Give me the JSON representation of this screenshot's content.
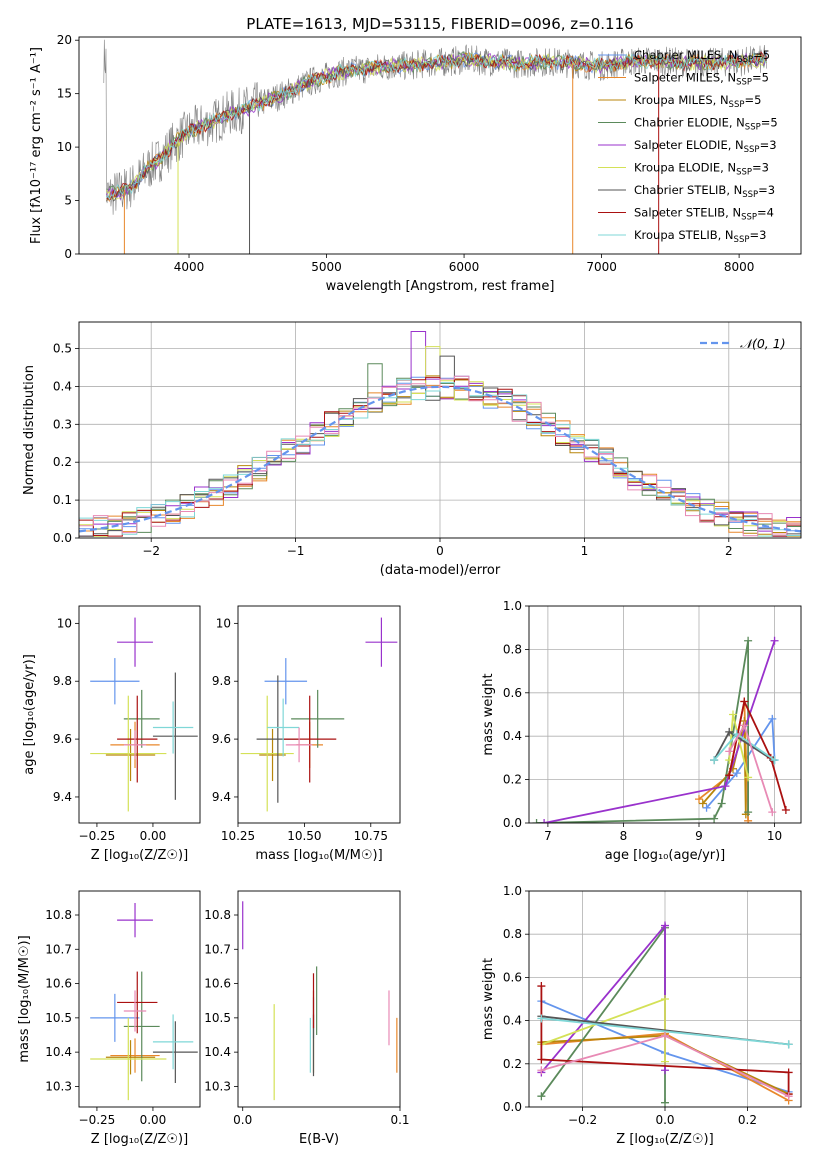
{
  "colors": {
    "Chabrier MILES": "#6495ED",
    "Salpeter MILES": "#E8872B",
    "Kroupa MILES": "#B8860B",
    "Chabrier ELODIE": "#5B8A5B",
    "Salpeter ELODIE": "#9932CC",
    "Kroupa ELODIE": "#D4E157",
    "Chabrier STELIB": "#555555",
    "Salpeter STELIB": "#AA1111",
    "Kroupa STELIB": "#7FD7D7",
    "pink": "#E88AB5",
    "grid": "#b0b0b0"
  },
  "chart_data": [
    {
      "id": "spectrum",
      "type": "line",
      "title": "PLATE=1613, MJD=53115, FIBERID=0096, z=0.116",
      "xlabel": "wavelength [Angstrom, rest frame]",
      "ylabel": "Flux [fλ10⁻¹⁷ erg cm⁻² s⁻¹ A⁻¹]",
      "xlim": [
        3200,
        8450
      ],
      "ylim": [
        0,
        20.3
      ],
      "xticks": [
        4000,
        5000,
        6000,
        7000,
        8000
      ],
      "yticks": [
        0,
        5,
        10,
        15,
        20
      ],
      "grid": false,
      "legend_position": "upper-right",
      "legend": [
        {
          "label": "Chabrier MILES, N",
          "sub": "SSP",
          "tail": "=5",
          "color": "#6495ED"
        },
        {
          "label": "Salpeter MILES, N",
          "sub": "SSP",
          "tail": "=5",
          "color": "#E8872B"
        },
        {
          "label": "Kroupa MILES, N",
          "sub": "SSP",
          "tail": "=5",
          "color": "#B8860B"
        },
        {
          "label": "Chabrier ELODIE, N",
          "sub": "SSP",
          "tail": "=5",
          "color": "#5B8A5B"
        },
        {
          "label": "Salpeter ELODIE, N",
          "sub": "SSP",
          "tail": "=3",
          "color": "#9932CC"
        },
        {
          "label": "Kroupa ELODIE, N",
          "sub": "SSP",
          "tail": "=3",
          "color": "#D4E157"
        },
        {
          "label": "Chabrier STELIB, N",
          "sub": "SSP",
          "tail": "=3",
          "color": "#555555"
        },
        {
          "label": "Salpeter STELIB, N",
          "sub": "SSP",
          "tail": "=4",
          "color": "#AA1111"
        },
        {
          "label": "Kroupa STELIB, N",
          "sub": "SSP",
          "tail": "=3",
          "color": "#7FD7D7"
        }
      ],
      "continuum": {
        "x": [
          3400,
          3500,
          3600,
          3700,
          3800,
          3900,
          4000,
          4100,
          4200,
          4300,
          4400,
          4500,
          4600,
          4700,
          4800,
          4900,
          5000,
          5100,
          5200,
          5300,
          5400,
          5500,
          5600,
          5700,
          5800,
          5900,
          6000,
          6200,
          6400,
          6600,
          6800,
          7000,
          7200,
          7400,
          7600,
          7800,
          8000,
          8200
        ],
        "y": [
          5.5,
          5.8,
          6.5,
          8.0,
          9.0,
          10.5,
          11.5,
          12.0,
          12.5,
          13.2,
          13.5,
          14.0,
          14.5,
          15.0,
          15.6,
          16.2,
          16.6,
          17.0,
          17.2,
          17.3,
          17.5,
          17.6,
          17.6,
          17.8,
          17.9,
          18.0,
          18.2,
          18.0,
          17.8,
          18.0,
          17.8,
          17.6,
          18.0,
          18.1,
          17.9,
          17.9,
          18.0,
          18.2
        ]
      },
      "model_dropouts": [
        {
          "x": 3530,
          "color": "#E8872B"
        },
        {
          "x": 3920,
          "color": "#D4E157"
        },
        {
          "x": 4440,
          "color": "#555555"
        },
        {
          "x": 6790,
          "color": "#E8872B"
        },
        {
          "x": 7415,
          "color": "#AA1111"
        }
      ]
    },
    {
      "id": "residuals",
      "type": "step",
      "xlabel": "(data-model)/error",
      "ylabel": "Normed distribution",
      "xlim": [
        -2.5,
        2.5
      ],
      "ylim": [
        0,
        0.57
      ],
      "xticks": [
        -2,
        -1,
        0,
        1,
        2
      ],
      "xtick_labels": [
        "−2",
        "−1",
        "0",
        "1",
        "2"
      ],
      "yticks": [
        0.0,
        0.1,
        0.2,
        0.3,
        0.4,
        0.5
      ],
      "ytick_labels": [
        "0.0",
        "0.1",
        "0.2",
        "0.3",
        "0.4",
        "0.5"
      ],
      "grid": true,
      "legend_position": "upper-right",
      "reference_curve": {
        "label": "𝒩(0, 1)",
        "mean": 0,
        "sigma": 1,
        "color": "#6495ED"
      },
      "bin_width": 0.1,
      "highlight_bins": [
        {
          "color": "#9932CC",
          "x": -0.2,
          "y": 0.545
        },
        {
          "color": "#D4E157",
          "x": -0.1,
          "y": 0.505
        },
        {
          "color": "#5B8A5B",
          "x": -0.5,
          "y": 0.46
        },
        {
          "color": "#555555",
          "x": 0.0,
          "y": 0.48
        },
        {
          "color": "#AA1111",
          "x": -0.4,
          "y": 0.38
        }
      ]
    },
    {
      "id": "age_vs_Z",
      "type": "errorbar",
      "xlabel": "Z [log₁₀(Z/Z☉)]",
      "ylabel": "age  [log₁₀(age/yr)]",
      "xlim": [
        -0.33,
        0.21
      ],
      "ylim": [
        9.31,
        10.06
      ],
      "xticks": [
        -0.25,
        0.0
      ],
      "xtick_labels": [
        "−0.25",
        "0.00"
      ],
      "yticks": [
        9.4,
        9.6,
        9.8,
        10.0
      ],
      "points": [
        {
          "x": -0.17,
          "y": 9.8,
          "xerr": 0.11,
          "yerr": 0.08,
          "color": "#6495ED"
        },
        {
          "x": -0.08,
          "y": 9.58,
          "xerr": 0.11,
          "yerr": 0.08,
          "color": "#E8872B"
        },
        {
          "x": -0.1,
          "y": 9.545,
          "xerr": 0.11,
          "yerr": 0.09,
          "color": "#B8860B"
        },
        {
          "x": -0.05,
          "y": 9.67,
          "xerr": 0.08,
          "yerr": 0.1,
          "color": "#5B8A5B"
        },
        {
          "x": -0.08,
          "y": 9.935,
          "xerr": 0.08,
          "yerr": 0.085,
          "color": "#9932CC"
        },
        {
          "x": -0.11,
          "y": 9.55,
          "xerr": 0.17,
          "yerr": 0.2,
          "color": "#D4E157"
        },
        {
          "x": 0.1,
          "y": 9.61,
          "xerr": 0.1,
          "yerr": 0.22,
          "color": "#555555"
        },
        {
          "x": -0.07,
          "y": 9.6,
          "xerr": 0.09,
          "yerr": 0.15,
          "color": "#AA1111"
        },
        {
          "x": 0.09,
          "y": 9.64,
          "xerr": 0.09,
          "yerr": 0.09,
          "color": "#7FD7D7"
        },
        {
          "x": -0.08,
          "y": 9.58,
          "xerr": 0.05,
          "yerr": 0.05,
          "color": "#E88AB5"
        }
      ]
    },
    {
      "id": "age_vs_mass",
      "type": "errorbar",
      "xlabel": "mass [log₁₀(M/M☉)]",
      "ylabel": "",
      "xlim": [
        10.25,
        10.86
      ],
      "ylim": [
        9.31,
        10.06
      ],
      "xticks": [
        10.25,
        10.5,
        10.75
      ],
      "xtick_labels": [
        "10.25",
        "10.50",
        "10.75"
      ],
      "yticks": [
        9.4,
        9.6,
        9.8,
        10.0
      ],
      "points": [
        {
          "x": 10.43,
          "y": 9.8,
          "xerr": 0.08,
          "yerr": 0.08,
          "color": "#6495ED"
        },
        {
          "x": 10.52,
          "y": 9.58,
          "xerr": 0.05,
          "yerr": 0.08,
          "color": "#E8872B"
        },
        {
          "x": 10.38,
          "y": 9.545,
          "xerr": 0.05,
          "yerr": 0.09,
          "color": "#B8860B"
        },
        {
          "x": 10.55,
          "y": 9.67,
          "xerr": 0.1,
          "yerr": 0.1,
          "color": "#5B8A5B"
        },
        {
          "x": 10.79,
          "y": 9.935,
          "xerr": 0.06,
          "yerr": 0.085,
          "color": "#9932CC"
        },
        {
          "x": 10.36,
          "y": 9.55,
          "xerr": 0.1,
          "yerr": 0.2,
          "color": "#D4E157"
        },
        {
          "x": 10.4,
          "y": 9.6,
          "xerr": 0.08,
          "yerr": 0.22,
          "color": "#555555"
        },
        {
          "x": 10.52,
          "y": 9.6,
          "xerr": 0.1,
          "yerr": 0.15,
          "color": "#AA1111"
        },
        {
          "x": 10.42,
          "y": 9.64,
          "xerr": 0.06,
          "yerr": 0.1,
          "color": "#7FD7D7"
        },
        {
          "x": 10.48,
          "y": 9.58,
          "xerr": 0.05,
          "yerr": 0.06,
          "color": "#E88AB5"
        }
      ]
    },
    {
      "id": "massweight_vs_age",
      "type": "line",
      "xlabel": "age  [log₁₀(age/yr)]",
      "ylabel": "mass weight",
      "xlim": [
        6.75,
        10.35
      ],
      "ylim": [
        0,
        1.0
      ],
      "xticks": [
        7,
        8,
        9,
        10
      ],
      "yticks": [
        0.0,
        0.2,
        0.4,
        0.6,
        0.8,
        1.0
      ],
      "ytick_labels": [
        "0.0",
        "0.2",
        "0.4",
        "0.6",
        "0.8",
        "1.0"
      ],
      "grid": true,
      "series": [
        {
          "color": "#6495ED",
          "x": [
            9.1,
            9.5,
            9.97,
            10.0
          ],
          "y": [
            0.07,
            0.23,
            0.48,
            0.29
          ]
        },
        {
          "color": "#E8872B",
          "x": [
            9.0,
            9.4,
            9.6,
            9.65
          ],
          "y": [
            0.11,
            0.22,
            0.56,
            0.01
          ]
        },
        {
          "color": "#B8860B",
          "x": [
            9.05,
            9.45,
            9.6,
            9.62
          ],
          "y": [
            0.09,
            0.25,
            0.47,
            0.04
          ]
        },
        {
          "color": "#5B8A5B",
          "x": [
            6.85,
            9.2,
            9.3,
            9.65,
            9.65
          ],
          "y": [
            0.0,
            0.02,
            0.09,
            0.84,
            0.05
          ]
        },
        {
          "color": "#9932CC",
          "x": [
            6.95,
            9.35,
            10.0
          ],
          "y": [
            0.0,
            0.17,
            0.84
          ]
        },
        {
          "color": "#D4E157",
          "x": [
            9.4,
            9.45,
            9.65
          ],
          "y": [
            0.29,
            0.5,
            0.21
          ]
        },
        {
          "color": "#555555",
          "x": [
            9.2,
            9.4,
            9.98
          ],
          "y": [
            0.29,
            0.42,
            0.29
          ]
        },
        {
          "color": "#AA1111",
          "x": [
            9.4,
            9.6,
            9.95,
            10.15
          ],
          "y": [
            0.22,
            0.56,
            0.3,
            0.06
          ]
        },
        {
          "color": "#7FD7D7",
          "x": [
            9.2,
            9.5,
            10.0
          ],
          "y": [
            0.29,
            0.41,
            0.29
          ]
        },
        {
          "color": "#E88AB5",
          "x": [
            9.4,
            9.6,
            9.97
          ],
          "y": [
            0.33,
            0.45,
            0.05
          ]
        }
      ]
    },
    {
      "id": "mass_vs_Z",
      "type": "errorbar",
      "xlabel": "Z [log₁₀(Z/Z☉)]",
      "ylabel": "mass [log₁₀(M/M☉)]",
      "xlim": [
        -0.33,
        0.21
      ],
      "ylim": [
        10.24,
        10.87
      ],
      "xticks": [
        -0.25,
        0.0
      ],
      "xtick_labels": [
        "−0.25",
        "0.00"
      ],
      "yticks": [
        10.3,
        10.4,
        10.5,
        10.6,
        10.7,
        10.8
      ],
      "ytick_labels": [
        "10.3",
        "10.4",
        "10.5",
        "10.6",
        "10.7",
        "10.8"
      ],
      "points": [
        {
          "x": -0.17,
          "y": 10.5,
          "xerr": 0.11,
          "yerr": 0.07,
          "color": "#6495ED"
        },
        {
          "x": -0.08,
          "y": 10.39,
          "xerr": 0.11,
          "yerr": 0.05,
          "color": "#E8872B"
        },
        {
          "x": -0.1,
          "y": 10.385,
          "xerr": 0.11,
          "yerr": 0.05,
          "color": "#B8860B"
        },
        {
          "x": -0.05,
          "y": 10.475,
          "xerr": 0.08,
          "yerr": 0.16,
          "color": "#5B8A5B"
        },
        {
          "x": -0.08,
          "y": 10.785,
          "xerr": 0.08,
          "yerr": 0.05,
          "color": "#9932CC"
        },
        {
          "x": -0.11,
          "y": 10.38,
          "xerr": 0.17,
          "yerr": 0.12,
          "color": "#D4E157"
        },
        {
          "x": 0.1,
          "y": 10.4,
          "xerr": 0.1,
          "yerr": 0.09,
          "color": "#555555"
        },
        {
          "x": -0.07,
          "y": 10.545,
          "xerr": 0.09,
          "yerr": 0.09,
          "color": "#AA1111"
        },
        {
          "x": 0.09,
          "y": 10.43,
          "xerr": 0.09,
          "yerr": 0.08,
          "color": "#7FD7D7"
        },
        {
          "x": -0.08,
          "y": 10.52,
          "xerr": 0.05,
          "yerr": 0.06,
          "color": "#E88AB5"
        }
      ]
    },
    {
      "id": "mass_vs_EBV",
      "type": "errorbar",
      "xlabel": "E(B-V)",
      "ylabel": "",
      "xlim": [
        -0.003,
        0.1
      ],
      "ylim": [
        10.24,
        10.87
      ],
      "xticks": [
        0.0,
        0.1
      ],
      "xtick_labels": [
        "0.0",
        "0.1"
      ],
      "yticks": [
        10.3,
        10.4,
        10.5,
        10.6,
        10.7,
        10.8
      ],
      "ytick_labels": [
        "10.3",
        "10.4",
        "10.5",
        "10.6",
        "10.7",
        "10.8"
      ],
      "points": [
        {
          "x": 0.045,
          "y": 10.5,
          "xerr": 0,
          "yerr": 0.06,
          "color": "#6495ED"
        },
        {
          "x": 0.098,
          "y": 10.42,
          "xerr": 0,
          "yerr": 0.08,
          "color": "#E8872B"
        },
        {
          "x": 0.045,
          "y": 10.46,
          "xerr": 0,
          "yerr": 0.12,
          "color": "#B8860B"
        },
        {
          "x": 0.047,
          "y": 10.55,
          "xerr": 0,
          "yerr": 0.1,
          "color": "#5B8A5B"
        },
        {
          "x": 0.0,
          "y": 10.77,
          "xerr": 0,
          "yerr": 0.07,
          "color": "#9932CC"
        },
        {
          "x": 0.02,
          "y": 10.4,
          "xerr": 0,
          "yerr": 0.14,
          "color": "#D4E157"
        },
        {
          "x": 0.045,
          "y": 10.42,
          "xerr": 0,
          "yerr": 0.09,
          "color": "#555555"
        },
        {
          "x": 0.045,
          "y": 10.55,
          "xerr": 0,
          "yerr": 0.08,
          "color": "#AA1111"
        },
        {
          "x": 0.043,
          "y": 10.42,
          "xerr": 0,
          "yerr": 0.08,
          "color": "#7FD7D7"
        },
        {
          "x": 0.093,
          "y": 10.5,
          "xerr": 0,
          "yerr": 0.08,
          "color": "#E88AB5"
        }
      ]
    },
    {
      "id": "massweight_vs_Z",
      "type": "line",
      "xlabel": "Z [log₁₀(Z/Z☉)]",
      "ylabel": "mass weight",
      "xlim": [
        -0.33,
        0.33
      ],
      "ylim": [
        0,
        1.0
      ],
      "xticks": [
        -0.2,
        0.0,
        0.2
      ],
      "xtick_labels": [
        "−0.2",
        "0.0",
        "0.2"
      ],
      "yticks": [
        0.0,
        0.2,
        0.4,
        0.6,
        0.8,
        1.0
      ],
      "ytick_labels": [
        "0.0",
        "0.2",
        "0.4",
        "0.6",
        "0.8",
        "1.0"
      ],
      "grid": true,
      "series": [
        {
          "color": "#6495ED",
          "x": [
            -0.3,
            0.0,
            0.3
          ],
          "y": [
            0.49,
            0.25,
            0.07
          ]
        },
        {
          "color": "#E8872B",
          "x": [
            -0.3,
            0.0,
            0.3
          ],
          "y": [
            0.29,
            0.34,
            0.03
          ]
        },
        {
          "color": "#B8860B",
          "x": [
            -0.3,
            0.0,
            0.3
          ],
          "y": [
            0.3,
            0.33,
            0.06
          ]
        },
        {
          "color": "#5B8A5B",
          "x": [
            -0.3,
            0.0,
            0.0
          ],
          "y": [
            0.05,
            0.83,
            0.02
          ]
        },
        {
          "color": "#9932CC",
          "x": [
            -0.3,
            0.0,
            0.0
          ],
          "y": [
            0.16,
            0.84,
            0.17
          ]
        },
        {
          "color": "#D4E157",
          "x": [
            -0.3,
            0.0,
            0.0
          ],
          "y": [
            0.29,
            0.5,
            0.21
          ]
        },
        {
          "color": "#555555",
          "x": [
            -0.3,
            0.3
          ],
          "y": [
            0.42,
            0.29
          ]
        },
        {
          "color": "#AA1111",
          "x": [
            -0.3,
            -0.3,
            0.3,
            0.3
          ],
          "y": [
            0.56,
            0.22,
            0.16,
            0.06
          ]
        },
        {
          "color": "#7FD7D7",
          "x": [
            -0.3,
            0.3
          ],
          "y": [
            0.41,
            0.29
          ]
        },
        {
          "color": "#E88AB5",
          "x": [
            -0.3,
            0.0,
            0.3
          ],
          "y": [
            0.17,
            0.33,
            0.05
          ]
        }
      ]
    }
  ]
}
